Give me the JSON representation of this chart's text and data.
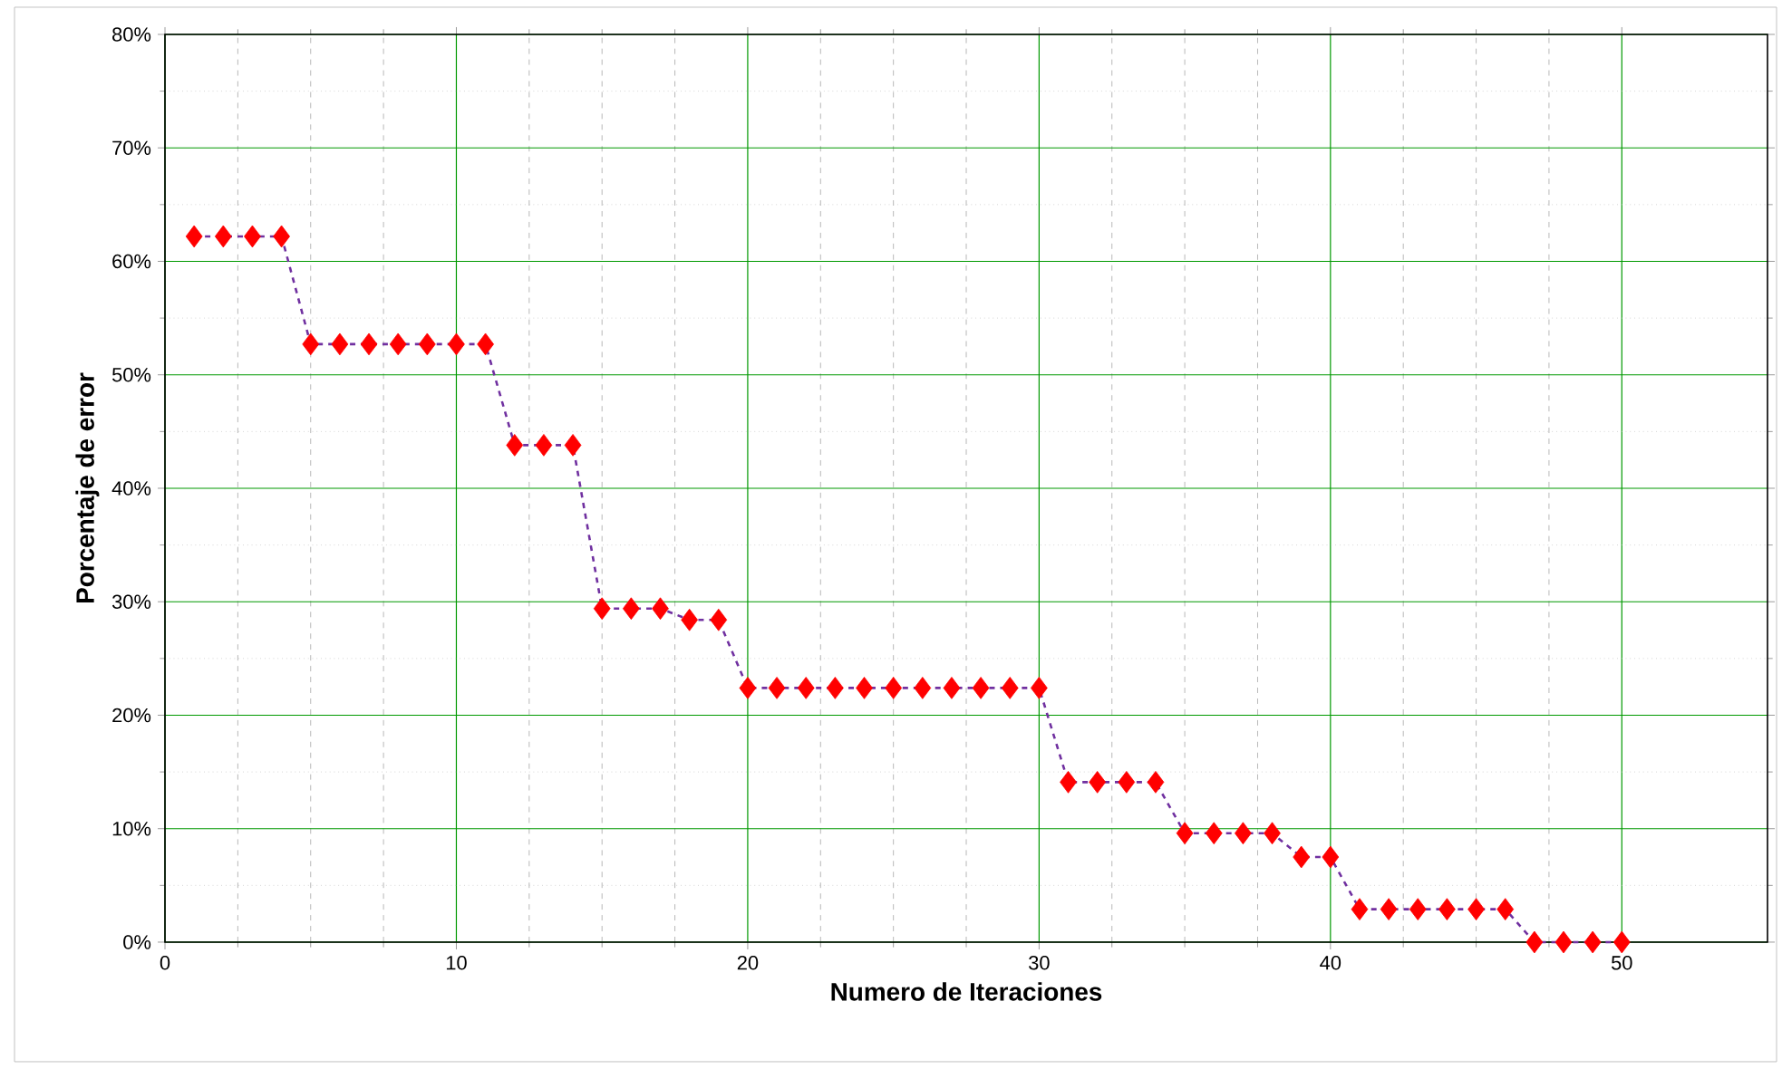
{
  "chart_data": {
    "type": "line",
    "xlabel": "Numero de Iteraciones",
    "ylabel": "Porcentaje de error",
    "x": [
      1,
      2,
      3,
      4,
      5,
      6,
      7,
      8,
      9,
      10,
      11,
      12,
      13,
      14,
      15,
      16,
      17,
      18,
      19,
      20,
      21,
      22,
      23,
      24,
      25,
      26,
      27,
      28,
      29,
      30,
      31,
      32,
      33,
      34,
      35,
      36,
      37,
      38,
      39,
      40,
      41,
      42,
      43,
      44,
      45,
      46,
      47,
      48,
      49,
      50
    ],
    "series": [
      {
        "color": "#7030a0",
        "line_style": "dashed",
        "marker": "none",
        "values": [
          62.2,
          62.2,
          62.2,
          62.2,
          52.7,
          52.7,
          52.7,
          52.7,
          52.7,
          52.7,
          52.7,
          43.8,
          43.8,
          43.8,
          29.4,
          29.4,
          29.4,
          28.4,
          28.4,
          22.4,
          22.4,
          22.4,
          22.4,
          22.4,
          22.4,
          22.4,
          22.4,
          22.4,
          22.4,
          22.4,
          14.1,
          14.1,
          14.1,
          14.1,
          9.6,
          9.6,
          9.6,
          9.6,
          7.5,
          7.5,
          2.9,
          2.9,
          2.9,
          2.9,
          2.9,
          2.9,
          0,
          0,
          0,
          0
        ]
      },
      {
        "type": "scatter",
        "color": "#ff0000",
        "marker": "diamond",
        "values": [
          62.2,
          62.2,
          62.2,
          62.2,
          52.7,
          52.7,
          52.7,
          52.7,
          52.7,
          52.7,
          52.7,
          43.8,
          43.8,
          43.8,
          29.4,
          29.4,
          29.4,
          28.4,
          28.4,
          22.4,
          22.4,
          22.4,
          22.4,
          22.4,
          22.4,
          22.4,
          22.4,
          22.4,
          22.4,
          22.4,
          14.1,
          14.1,
          14.1,
          14.1,
          9.6,
          9.6,
          9.6,
          9.6,
          7.5,
          7.5,
          2.9,
          2.9,
          2.9,
          2.9,
          2.9,
          2.9,
          0,
          0,
          0,
          0
        ]
      }
    ],
    "xlim": [
      0,
      55
    ],
    "xticks": [
      0,
      10,
      20,
      30,
      40,
      50
    ],
    "ylim": [
      0,
      80
    ],
    "yticks": [
      {
        "value": 0,
        "label": "0%"
      },
      {
        "value": 10,
        "label": "10%"
      },
      {
        "value": 20,
        "label": "20%"
      },
      {
        "value": 30,
        "label": "30%"
      },
      {
        "value": 40,
        "label": "40%"
      },
      {
        "value": 50,
        "label": "50%"
      },
      {
        "value": 60,
        "label": "60%"
      },
      {
        "value": 70,
        "label": "70%"
      },
      {
        "value": 80,
        "label": "80%"
      }
    ],
    "grid": true
  }
}
